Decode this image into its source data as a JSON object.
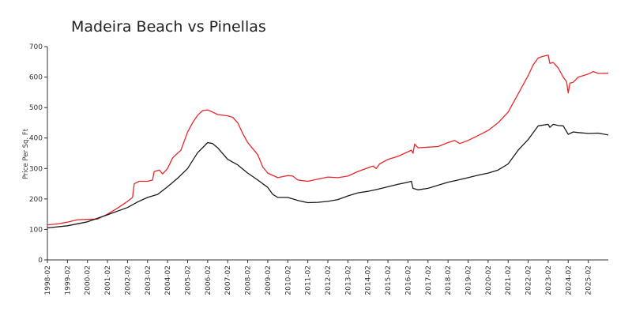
{
  "chart_data": {
    "type": "line",
    "title": "Madeira Beach vs Pinellas",
    "ylabel": "Price Per Sq. Ft",
    "xlabel": "",
    "ylim": [
      0,
      700
    ],
    "yticks": [
      0,
      100,
      200,
      300,
      400,
      500,
      600,
      700
    ],
    "xlim": [
      "1998-02",
      "2026-02"
    ],
    "xticks": [
      "1998-02",
      "1999-02",
      "2000-02",
      "2001-02",
      "2002-02",
      "2003-02",
      "2004-02",
      "2005-02",
      "2006-02",
      "2007-02",
      "2008-02",
      "2009-02",
      "2010-02",
      "2011-02",
      "2012-02",
      "2013-02",
      "2014-02",
      "2015-02",
      "2016-02",
      "2017-02",
      "2018-02",
      "2019-02",
      "2020-02",
      "2021-02",
      "2022-02",
      "2023-02",
      "2024-02",
      "2025-02"
    ],
    "grid": false,
    "legend": "none",
    "series": [
      {
        "color": "#e8262a",
        "points": [
          [
            "1998-02",
            115
          ],
          [
            "1998-08",
            118
          ],
          [
            "1999-02",
            124
          ],
          [
            "1999-08",
            132
          ],
          [
            "2000-02",
            133
          ],
          [
            "2000-08",
            134
          ],
          [
            "2001-02",
            150
          ],
          [
            "2001-08",
            170
          ],
          [
            "2002-02",
            192
          ],
          [
            "2002-05",
            205
          ],
          [
            "2002-06",
            250
          ],
          [
            "2002-09",
            258
          ],
          [
            "2003-02",
            258
          ],
          [
            "2003-05",
            262
          ],
          [
            "2003-06",
            290
          ],
          [
            "2003-09",
            295
          ],
          [
            "2003-11",
            282
          ],
          [
            "2004-02",
            300
          ],
          [
            "2004-05",
            335
          ],
          [
            "2004-10",
            360
          ],
          [
            "2005-01",
            405
          ],
          [
            "2005-02",
            420
          ],
          [
            "2005-05",
            450
          ],
          [
            "2005-08",
            475
          ],
          [
            "2005-11",
            490
          ],
          [
            "2006-02",
            492
          ],
          [
            "2006-05",
            485
          ],
          [
            "2006-08",
            477
          ],
          [
            "2007-02",
            473
          ],
          [
            "2007-05",
            468
          ],
          [
            "2007-08",
            450
          ],
          [
            "2007-11",
            415
          ],
          [
            "2008-02",
            385
          ],
          [
            "2008-05",
            365
          ],
          [
            "2008-08",
            345
          ],
          [
            "2008-11",
            305
          ],
          [
            "2009-02",
            285
          ],
          [
            "2009-08",
            270
          ],
          [
            "2010-02",
            277
          ],
          [
            "2010-05",
            275
          ],
          [
            "2010-08",
            262
          ],
          [
            "2011-02",
            258
          ],
          [
            "2011-08",
            265
          ],
          [
            "2012-02",
            272
          ],
          [
            "2012-08",
            270
          ],
          [
            "2013-02",
            275
          ],
          [
            "2013-08",
            290
          ],
          [
            "2014-02",
            302
          ],
          [
            "2014-05",
            308
          ],
          [
            "2014-07",
            300
          ],
          [
            "2014-09",
            315
          ],
          [
            "2015-02",
            330
          ],
          [
            "2015-08",
            340
          ],
          [
            "2016-02",
            355
          ],
          [
            "2016-04",
            360
          ],
          [
            "2016-05",
            350
          ],
          [
            "2016-06",
            380
          ],
          [
            "2016-08",
            368
          ],
          [
            "2017-02",
            370
          ],
          [
            "2017-08",
            372
          ],
          [
            "2018-02",
            385
          ],
          [
            "2018-06",
            392
          ],
          [
            "2018-09",
            382
          ],
          [
            "2019-02",
            392
          ],
          [
            "2019-08",
            408
          ],
          [
            "2020-02",
            425
          ],
          [
            "2020-08",
            450
          ],
          [
            "2021-02",
            485
          ],
          [
            "2021-08",
            545
          ],
          [
            "2022-02",
            605
          ],
          [
            "2022-05",
            640
          ],
          [
            "2022-08",
            663
          ],
          [
            "2022-11",
            668
          ],
          [
            "2023-02",
            672
          ],
          [
            "2023-03",
            645
          ],
          [
            "2023-05",
            648
          ],
          [
            "2023-08",
            630
          ],
          [
            "2023-11",
            600
          ],
          [
            "2024-01",
            585
          ],
          [
            "2024-02",
            548
          ],
          [
            "2024-03",
            580
          ],
          [
            "2024-05",
            583
          ],
          [
            "2024-08",
            600
          ],
          [
            "2025-02",
            610
          ],
          [
            "2025-05",
            618
          ],
          [
            "2025-08",
            612
          ],
          [
            "2026-02",
            613
          ]
        ]
      },
      {
        "color": "#1a1a1a",
        "points": [
          [
            "1998-02",
            105
          ],
          [
            "1999-02",
            112
          ],
          [
            "2000-02",
            125
          ],
          [
            "2001-02",
            148
          ],
          [
            "2002-02",
            172
          ],
          [
            "2002-08",
            190
          ],
          [
            "2003-02",
            205
          ],
          [
            "2003-08",
            215
          ],
          [
            "2004-02",
            240
          ],
          [
            "2004-08",
            268
          ],
          [
            "2005-02",
            300
          ],
          [
            "2005-08",
            352
          ],
          [
            "2006-02",
            385
          ],
          [
            "2006-05",
            382
          ],
          [
            "2006-08",
            368
          ],
          [
            "2007-02",
            330
          ],
          [
            "2007-08",
            312
          ],
          [
            "2008-02",
            285
          ],
          [
            "2008-08",
            262
          ],
          [
            "2009-02",
            238
          ],
          [
            "2009-05",
            215
          ],
          [
            "2009-08",
            205
          ],
          [
            "2010-02",
            205
          ],
          [
            "2010-08",
            195
          ],
          [
            "2011-02",
            188
          ],
          [
            "2011-08",
            189
          ],
          [
            "2012-02",
            192
          ],
          [
            "2012-08",
            198
          ],
          [
            "2013-02",
            210
          ],
          [
            "2013-08",
            220
          ],
          [
            "2014-02",
            225
          ],
          [
            "2014-08",
            232
          ],
          [
            "2015-02",
            240
          ],
          [
            "2015-08",
            248
          ],
          [
            "2016-02",
            255
          ],
          [
            "2016-04",
            258
          ],
          [
            "2016-05",
            235
          ],
          [
            "2016-08",
            230
          ],
          [
            "2017-02",
            235
          ],
          [
            "2017-08",
            245
          ],
          [
            "2018-02",
            255
          ],
          [
            "2018-08",
            262
          ],
          [
            "2019-02",
            270
          ],
          [
            "2019-08",
            278
          ],
          [
            "2020-02",
            285
          ],
          [
            "2020-08",
            295
          ],
          [
            "2021-02",
            315
          ],
          [
            "2021-08",
            360
          ],
          [
            "2022-02",
            395
          ],
          [
            "2022-08",
            440
          ],
          [
            "2023-02",
            445
          ],
          [
            "2023-03",
            435
          ],
          [
            "2023-05",
            445
          ],
          [
            "2023-08",
            441
          ],
          [
            "2023-11",
            440
          ],
          [
            "2024-02",
            412
          ],
          [
            "2024-05",
            420
          ],
          [
            "2024-08",
            418
          ],
          [
            "2025-02",
            415
          ],
          [
            "2025-08",
            416
          ],
          [
            "2026-02",
            410
          ]
        ]
      }
    ]
  }
}
